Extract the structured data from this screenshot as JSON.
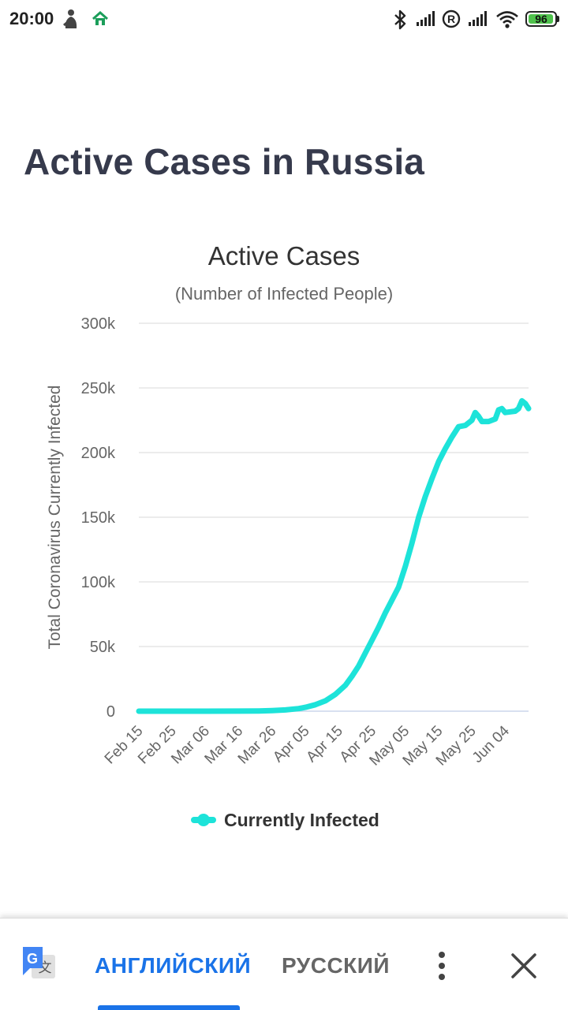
{
  "status_bar": {
    "time": "20:00",
    "battery": "96",
    "battery_level": 0.96,
    "icons": [
      "person-notification-icon",
      "home-notification-icon",
      "bluetooth-icon",
      "signal-icon",
      "roaming-icon",
      "signal-icon",
      "wifi-icon",
      "battery-icon"
    ]
  },
  "page": {
    "title": "Active Cases in Russia"
  },
  "chart_data": {
    "type": "line",
    "title": "Active Cases",
    "subtitle": "(Number of Infected People)",
    "xlabel": "",
    "ylabel": "Total Coronavirus Currently Infected",
    "ylim": [
      0,
      300000
    ],
    "y_ticks": [
      0,
      50000,
      100000,
      150000,
      200000,
      250000,
      300000
    ],
    "y_tick_labels": [
      "0",
      "50k",
      "100k",
      "150k",
      "200k",
      "250k",
      "300k"
    ],
    "x_tick_labels": [
      "Feb 15",
      "Feb 25",
      "Mar 06",
      "Mar 16",
      "Mar 26",
      "Apr 05",
      "Apr 15",
      "Apr 25",
      "May 05",
      "May 15",
      "May 25",
      "Jun 04"
    ],
    "x_tick_day_index": [
      0,
      10,
      20,
      30,
      40,
      50,
      60,
      70,
      80,
      90,
      100,
      110
    ],
    "grid": true,
    "legend_position": "bottom-center",
    "color": "#1de3d9",
    "series": [
      {
        "name": "Currently Infected",
        "points": [
          [
            0,
            2
          ],
          [
            10,
            2
          ],
          [
            20,
            3
          ],
          [
            30,
            50
          ],
          [
            36,
            200
          ],
          [
            40,
            500
          ],
          [
            44,
            1000
          ],
          [
            48,
            2000
          ],
          [
            50,
            3000
          ],
          [
            53,
            5000
          ],
          [
            56,
            8000
          ],
          [
            59,
            13000
          ],
          [
            62,
            20000
          ],
          [
            64,
            27000
          ],
          [
            66,
            35000
          ],
          [
            68,
            45000
          ],
          [
            70,
            55000
          ],
          [
            72,
            65000
          ],
          [
            74,
            76000
          ],
          [
            76,
            86000
          ],
          [
            78,
            96000
          ],
          [
            80,
            112000
          ],
          [
            82,
            130000
          ],
          [
            84,
            150000
          ],
          [
            86,
            166000
          ],
          [
            88,
            180000
          ],
          [
            90,
            193000
          ],
          [
            92,
            203000
          ],
          [
            94,
            212000
          ],
          [
            96,
            220000
          ],
          [
            98,
            221000
          ],
          [
            100,
            225000
          ],
          [
            101,
            231000
          ],
          [
            102,
            228000
          ],
          [
            103,
            224000
          ],
          [
            105,
            224000
          ],
          [
            107,
            226000
          ],
          [
            108,
            233000
          ],
          [
            109,
            234000
          ],
          [
            110,
            231000
          ],
          [
            113,
            232000
          ],
          [
            114,
            234000
          ],
          [
            115,
            240000
          ],
          [
            116,
            238000
          ],
          [
            117,
            234000
          ]
        ]
      }
    ]
  },
  "translate_bar": {
    "source_language": "АНГЛИЙСКИЙ",
    "target_language": "РУССКИЙ",
    "logo_text": "G",
    "logo_glyph": "文"
  }
}
